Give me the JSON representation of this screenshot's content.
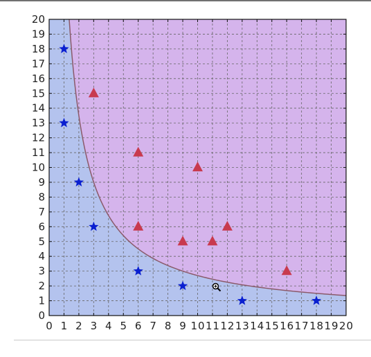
{
  "chart_data": {
    "type": "scatter",
    "title": "",
    "xlabel": "",
    "ylabel": "",
    "xlim": [
      0,
      20
    ],
    "ylim": [
      0,
      20
    ],
    "grid": true,
    "x_ticks": [
      "0",
      "1",
      "2",
      "3",
      "4",
      "5",
      "6",
      "7",
      "8",
      "9",
      "10",
      "11",
      "12",
      "13",
      "14",
      "15",
      "16",
      "17",
      "18",
      "19",
      "20"
    ],
    "y_ticks": [
      "0",
      "1",
      "2",
      "3",
      "4",
      "5",
      "6",
      "7",
      "8",
      "9",
      "10",
      "11",
      "12",
      "13",
      "14",
      "15",
      "16",
      "17",
      "18",
      "19",
      "20"
    ],
    "series": [
      {
        "marker": "star",
        "color": "#0a1fd0",
        "points": [
          [
            1,
            18
          ],
          [
            1,
            13
          ],
          [
            2,
            9
          ],
          [
            3,
            6
          ],
          [
            6,
            3
          ],
          [
            9,
            2
          ],
          [
            13,
            1
          ],
          [
            18,
            1
          ]
        ]
      },
      {
        "marker": "triangle",
        "color": "#c83a4e",
        "points": [
          [
            3,
            15
          ],
          [
            6,
            11
          ],
          [
            6,
            6
          ],
          [
            9,
            5
          ],
          [
            10,
            10
          ],
          [
            11,
            5
          ],
          [
            12,
            6
          ],
          [
            16,
            3
          ]
        ]
      }
    ],
    "decision_boundary": {
      "curve": "y = 27/x",
      "x_start": 1.35,
      "x_end": 20,
      "line_color": "#8a5a6a"
    },
    "regions": {
      "lower_color": "#b4c3ee",
      "upper_color": "#d5b4ec"
    },
    "grid_color": "#666666",
    "cursor": "zoom-icon"
  }
}
